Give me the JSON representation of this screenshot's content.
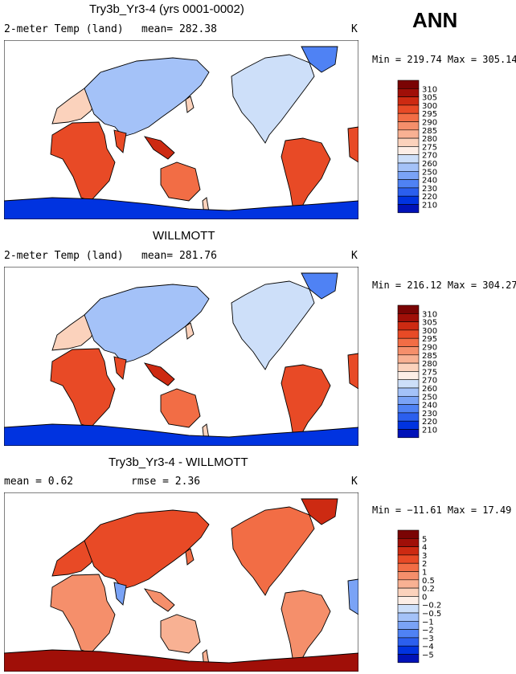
{
  "season": "ANN",
  "colors": {
    "ocean": "#ffffff",
    "coast": "#000000",
    "temp_scale": [
      "#00007f",
      "#0012b8",
      "#0033e0",
      "#2b5fee",
      "#4f82f4",
      "#7aa3f6",
      "#a4c2f8",
      "#cddff9",
      "#fdeee6",
      "#fbd2bc",
      "#f8b193",
      "#f58f6b",
      "#f26d45",
      "#e84a26",
      "#cd2a12",
      "#a00f08",
      "#7a0404"
    ],
    "diff_scale": [
      "#00007f",
      "#0012b8",
      "#0033e0",
      "#2b5fee",
      "#4f82f4",
      "#7aa3f6",
      "#a4c2f8",
      "#cddff9",
      "#fdeee6",
      "#fbd2bc",
      "#f8b193",
      "#f58f6b",
      "#f26d45",
      "#e84a26",
      "#cd2a12",
      "#a00f08",
      "#7a0404"
    ]
  },
  "chart_data": [
    {
      "type": "heatmap",
      "title": "Try3b_Yr3-4 (yrs 0001-0002)",
      "left_label": "2-meter Temp (land)",
      "stat_text": "mean= 282.38",
      "units": "K",
      "minmax": "Min = 219.74 Max = 305.14",
      "min": 219.74,
      "max": 305.14,
      "mean": 282.38,
      "colorbar_labels": [
        "310",
        "305",
        "300",
        "295",
        "290",
        "285",
        "280",
        "275",
        "270",
        "260",
        "250",
        "240",
        "230",
        "220",
        "210"
      ]
    },
    {
      "type": "heatmap",
      "title": "WILLMOTT",
      "left_label": "2-meter Temp (land)",
      "stat_text": "mean= 281.76",
      "units": "K",
      "minmax": "Min = 216.12 Max = 304.27",
      "min": 216.12,
      "max": 304.27,
      "mean": 281.76,
      "colorbar_labels": [
        "310",
        "305",
        "300",
        "295",
        "290",
        "285",
        "280",
        "275",
        "270",
        "260",
        "250",
        "240",
        "230",
        "220",
        "210"
      ]
    },
    {
      "type": "heatmap",
      "title": "Try3b_Yr3-4 - WILLMOTT",
      "left_label": "mean =   0.62",
      "stat_text": "rmse =   2.36",
      "units": "K",
      "minmax": "Min = −11.61 Max =  17.49",
      "min": -11.61,
      "max": 17.49,
      "mean": 0.62,
      "rmse": 2.36,
      "colorbar_labels": [
        "5",
        "4",
        "3",
        "2",
        "1",
        "0.5",
        "0.2",
        "0",
        "−0.2",
        "−0.5",
        "−1",
        "−2",
        "−3",
        "−4",
        "−5"
      ]
    }
  ]
}
